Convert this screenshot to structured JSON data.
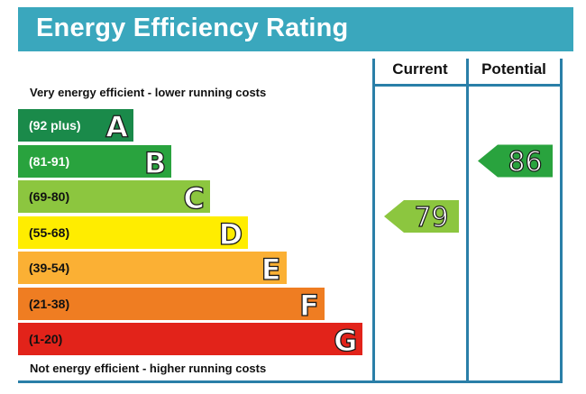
{
  "chart_data": {
    "type": "bar",
    "title": "Energy Efficiency Rating",
    "top_note": "Very energy efficient - lower running costs",
    "bottom_note": "Not energy efficient - higher running costs",
    "bands": [
      {
        "letter": "A",
        "range": "(92 plus)",
        "color": "#1a8a4a",
        "text_color": "#ffffff"
      },
      {
        "letter": "B",
        "range": "(81-91)",
        "color": "#29a33e",
        "text_color": "#ffffff"
      },
      {
        "letter": "C",
        "range": "(69-80)",
        "color": "#8cc63f",
        "text_color": "#111111"
      },
      {
        "letter": "D",
        "range": "(55-68)",
        "color": "#ffed00",
        "text_color": "#111111"
      },
      {
        "letter": "E",
        "range": "(39-54)",
        "color": "#fbb034",
        "text_color": "#111111"
      },
      {
        "letter": "F",
        "range": "(21-38)",
        "color": "#ef7d22",
        "text_color": "#111111"
      },
      {
        "letter": "G",
        "range": "(1-20)",
        "color": "#e2231a",
        "text_color": "#111111"
      }
    ],
    "columns": [
      {
        "label": "Current",
        "value": 79,
        "band": "C",
        "color": "#8cc63f"
      },
      {
        "label": "Potential",
        "value": 86,
        "band": "B",
        "color": "#29a33e"
      }
    ]
  }
}
